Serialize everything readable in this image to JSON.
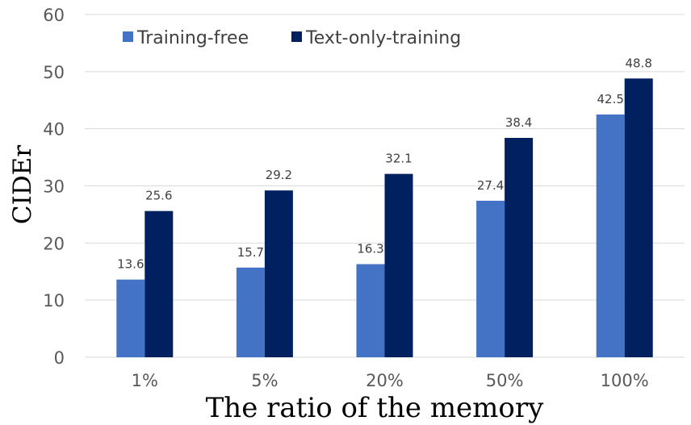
{
  "chart_data": {
    "type": "bar",
    "title": "",
    "xlabel": "The ratio of the memory",
    "ylabel": "CIDEr",
    "categories": [
      "1%",
      "5%",
      "20%",
      "50%",
      "100%"
    ],
    "series": [
      {
        "name": "Training-free",
        "values": [
          13.6,
          15.7,
          16.3,
          27.4,
          42.5
        ],
        "color": "#4472C4"
      },
      {
        "name": "Text-only-training",
        "values": [
          25.6,
          29.2,
          32.1,
          38.4,
          48.8
        ],
        "color": "#002060"
      }
    ],
    "ylim": [
      0,
      60
    ],
    "yticks": [
      0,
      10,
      20,
      30,
      40,
      50,
      60
    ],
    "grid": true,
    "legend_position": "top-left"
  },
  "colors": {
    "grid": "#D9D9D9",
    "axis": "#D9D9D9"
  }
}
